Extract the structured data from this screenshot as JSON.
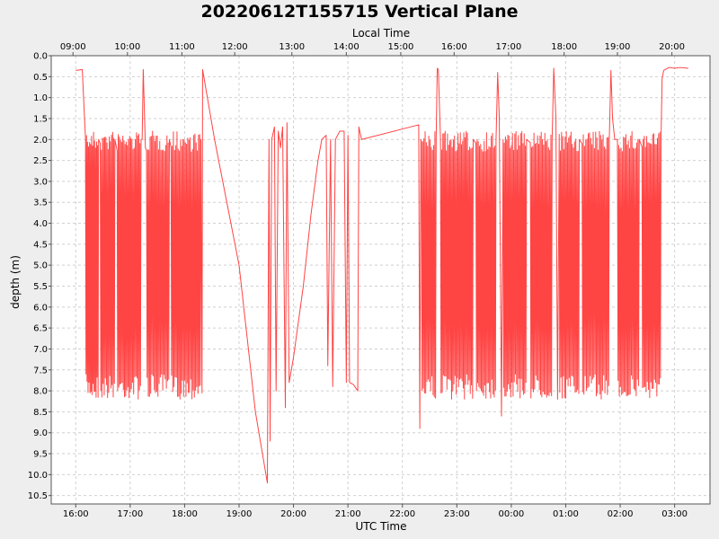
{
  "chart_data": {
    "type": "line",
    "title": "20220612T155715 Vertical Plane",
    "xlabel": "UTC Time",
    "x2label": "Local Time",
    "ylabel": "depth (m)",
    "y_inverted": true,
    "grid": true,
    "colors": {
      "series": "#ff4444",
      "background": "#eeeeee",
      "plot": "#ffffff"
    },
    "x_ticks": [
      "16:00",
      "17:00",
      "18:00",
      "19:00",
      "20:00",
      "21:00",
      "22:00",
      "23:00",
      "00:00",
      "01:00",
      "02:00",
      "03:00"
    ],
    "x_tick_hours": [
      16,
      17,
      18,
      19,
      20,
      21,
      22,
      23,
      24,
      25,
      26,
      27
    ],
    "x2_ticks": [
      "09:00",
      "10:00",
      "11:00",
      "12:00",
      "13:00",
      "14:00",
      "15:00",
      "16:00",
      "17:00",
      "18:00",
      "19:00",
      "20:00"
    ],
    "x2_tick_hours": [
      15.95,
      16.95,
      17.95,
      18.92,
      19.97,
      20.97,
      21.97,
      22.95,
      23.95,
      24.97,
      25.95,
      26.95
    ],
    "xlim_hours": [
      15.55,
      27.65
    ],
    "y_ticks": [
      "0.0",
      "0.5",
      "1.0",
      "1.5",
      "2.0",
      "2.5",
      "3.0",
      "3.5",
      "4.0",
      "4.5",
      "5.0",
      "5.5",
      "6.0",
      "6.5",
      "7.0",
      "7.5",
      "8.0",
      "8.5",
      "9.0",
      "9.5",
      "10.0",
      "10.5"
    ],
    "ylim": [
      0,
      10.7
    ],
    "series": [
      {
        "name": "",
        "dives": [
          {
            "start": 16.18,
            "end": 16.42,
            "count": 13
          },
          {
            "start": 16.45,
            "end": 16.72,
            "count": 13
          },
          {
            "start": 16.76,
            "end": 17.2,
            "count": 21
          },
          {
            "start": 17.3,
            "end": 17.72,
            "count": 19
          },
          {
            "start": 17.75,
            "end": 18.3,
            "count": 25
          },
          {
            "start": 22.35,
            "end": 22.62,
            "count": 12
          },
          {
            "start": 22.7,
            "end": 23.3,
            "count": 28
          },
          {
            "start": 23.35,
            "end": 23.72,
            "count": 17
          },
          {
            "start": 23.85,
            "end": 24.28,
            "count": 20
          },
          {
            "start": 24.35,
            "end": 24.75,
            "count": 18
          },
          {
            "start": 24.88,
            "end": 25.25,
            "count": 17
          },
          {
            "start": 25.3,
            "end": 25.8,
            "count": 22
          },
          {
            "start": 25.95,
            "end": 26.35,
            "count": 18
          },
          {
            "start": 26.4,
            "end": 26.75,
            "count": 16
          }
        ],
        "points": [
          [
            16.0,
            0.35
          ],
          [
            16.12,
            0.33
          ],
          [
            16.18,
            2.0
          ],
          [
            17.22,
            2.0
          ],
          [
            17.24,
            0.33
          ],
          [
            17.28,
            2.2
          ],
          [
            18.3,
            2.3
          ],
          [
            18.32,
            8.05
          ],
          [
            18.33,
            0.33
          ],
          [
            18.55,
            2.0
          ],
          [
            19.0,
            5.0
          ],
          [
            19.3,
            8.5
          ],
          [
            19.52,
            10.2
          ],
          [
            19.55,
            2.0
          ],
          [
            19.57,
            9.2
          ],
          [
            19.6,
            2.0
          ],
          [
            19.65,
            1.7
          ],
          [
            19.68,
            8.0
          ],
          [
            19.72,
            1.8
          ],
          [
            19.76,
            2.2
          ],
          [
            19.8,
            1.7
          ],
          [
            19.85,
            8.4
          ],
          [
            19.88,
            1.6
          ],
          [
            19.92,
            7.8
          ],
          [
            20.0,
            7.2
          ],
          [
            20.18,
            5.5
          ],
          [
            20.32,
            3.8
          ],
          [
            20.45,
            2.5
          ],
          [
            20.52,
            2.0
          ],
          [
            20.6,
            1.9
          ],
          [
            20.63,
            7.4
          ],
          [
            20.68,
            2.0
          ],
          [
            20.72,
            7.9
          ],
          [
            20.77,
            2.0
          ],
          [
            20.85,
            1.8
          ],
          [
            20.93,
            1.8
          ],
          [
            20.97,
            7.8
          ],
          [
            21.0,
            1.9
          ],
          [
            21.03,
            7.8
          ],
          [
            21.1,
            7.85
          ],
          [
            21.18,
            8.0
          ],
          [
            21.2,
            1.7
          ],
          [
            21.25,
            2.0
          ],
          [
            22.3,
            1.65
          ],
          [
            22.32,
            8.9
          ],
          [
            22.34,
            2.0
          ],
          [
            22.62,
            2.0
          ],
          [
            22.64,
            0.3
          ],
          [
            22.66,
            0.33
          ],
          [
            22.7,
            2.0
          ],
          [
            23.72,
            2.0
          ],
          [
            23.75,
            0.4
          ],
          [
            23.78,
            1.5
          ],
          [
            23.82,
            8.6
          ],
          [
            23.85,
            2.0
          ],
          [
            24.75,
            2.0
          ],
          [
            24.78,
            0.3
          ],
          [
            24.82,
            1.5
          ],
          [
            24.85,
            8.2
          ],
          [
            24.88,
            2.0
          ],
          [
            25.8,
            2.0
          ],
          [
            25.83,
            0.35
          ],
          [
            25.86,
            1.5
          ],
          [
            25.9,
            2.0
          ],
          [
            25.95,
            2.0
          ],
          [
            26.75,
            2.0
          ],
          [
            26.77,
            0.55
          ],
          [
            26.8,
            0.35
          ],
          [
            26.9,
            0.28
          ],
          [
            27.0,
            0.3
          ],
          [
            27.1,
            0.28
          ],
          [
            27.25,
            0.3
          ]
        ]
      }
    ]
  }
}
